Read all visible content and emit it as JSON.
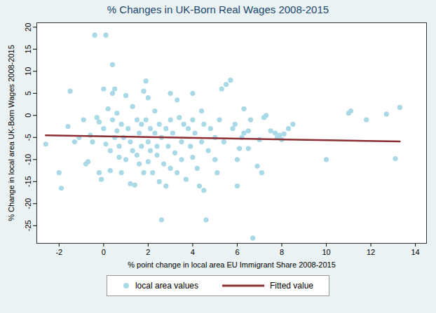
{
  "chart_data": {
    "type": "scatter",
    "title": "% Changes in UK-Born Real Wages 2008-2015",
    "x_label": "% point change in local area EU Immigrant Share 2008-2015",
    "y_label": "% Change in local area UK-Born Wages 2008-2015",
    "xlim": [
      -3,
      14.5
    ],
    "ylim": [
      -29,
      21
    ],
    "xticks": [
      -2,
      0,
      2,
      4,
      6,
      8,
      10,
      12,
      14
    ],
    "yticks": [
      -25,
      -20,
      -15,
      -10,
      -5,
      0,
      5,
      10,
      15,
      20
    ],
    "grid": false,
    "legend": "bottom",
    "series": [
      {
        "name": "local area values",
        "type": "scatter",
        "marker": "circle",
        "color": "#a9d9e6",
        "x": [
          -2.6,
          -2,
          -1.9,
          -1.6,
          -1.5,
          -1.3,
          -1.1,
          -0.9,
          -0.8,
          -0.7,
          -0.6,
          -0.5,
          -0.4,
          -0.3,
          -0.2,
          -0.2,
          -0.1,
          0,
          0,
          0.1,
          0.1,
          0.2,
          0.3,
          0.3,
          0.4,
          0.4,
          0.4,
          0.5,
          0.5,
          0.6,
          0.6,
          0.7,
          0.7,
          0.8,
          0.8,
          0.9,
          1,
          1,
          1.1,
          1.2,
          1.2,
          1.3,
          1.3,
          1.4,
          1.5,
          1.5,
          1.6,
          1.6,
          1.7,
          1.7,
          1.8,
          1.8,
          1.9,
          1.9,
          2,
          2,
          2,
          2.1,
          2.1,
          2.2,
          2.3,
          2.3,
          2.4,
          2.4,
          2.5,
          2.5,
          2.6,
          2.6,
          2.7,
          2.8,
          2.8,
          2.9,
          3,
          3,
          3,
          3.1,
          3.2,
          3.3,
          3.3,
          3.4,
          3.5,
          3.5,
          3.6,
          3.7,
          3.8,
          3.9,
          4,
          4,
          4,
          4.1,
          4.2,
          4.3,
          4.4,
          4.4,
          4.5,
          4.5,
          4.6,
          4.7,
          4.8,
          5,
          5,
          5.1,
          5.2,
          5.3,
          5.4,
          5.5,
          5.7,
          5.8,
          5.9,
          6,
          6,
          6.1,
          6.2,
          6.3,
          6.3,
          6.5,
          6.5,
          6.6,
          6.7,
          6.9,
          7,
          7.1,
          7.2,
          7.3,
          7.5,
          7.7,
          7.8,
          7.9,
          8,
          8.1,
          8.3,
          8.5,
          10,
          11,
          11.1,
          11.8,
          12.7,
          13.1,
          13.3
        ],
        "values": [
          -6.5,
          -13,
          -16.5,
          -2.5,
          5.5,
          -6,
          -5,
          -1,
          -11,
          -10.5,
          -4.5,
          -6,
          18.2,
          -0.5,
          -1.5,
          -13,
          -14.5,
          6,
          -3,
          18.2,
          -6.5,
          1.5,
          -8,
          -12.5,
          11.5,
          5,
          -1,
          6,
          -5,
          -3.5,
          0.5,
          -7,
          -9.5,
          -2,
          -13,
          -5,
          4.5,
          -10,
          -3,
          -6,
          -15.5,
          2,
          -8,
          -15.8,
          -1,
          -9,
          -4,
          -11,
          -2,
          -7,
          5.5,
          -13,
          7.8,
          -1,
          4,
          -6,
          -10.5,
          -3,
          -8,
          -13,
          -4,
          1,
          -7,
          -9,
          -2,
          -15,
          -23.7,
          -5,
          -11,
          -3,
          -16,
          -7,
          5,
          -1,
          -12,
          -4,
          -8.5,
          3.5,
          -13,
          -0.5,
          -6,
          -10,
          -2,
          -14.5,
          -3,
          -7,
          -1,
          5,
          -9.5,
          -4,
          -12,
          -16,
          -6,
          1,
          -17,
          -2,
          -23.7,
          -8,
          -3,
          -5,
          -10,
          -13,
          -1,
          6,
          -6,
          7,
          8,
          -3,
          -2,
          -16,
          -10,
          -7.5,
          -5,
          1.5,
          -4,
          -3.5,
          -7.5,
          -1,
          -27.8,
          -11.5,
          -5.5,
          -13,
          -0.5,
          0,
          -3.5,
          -4,
          -5,
          -4.5,
          -5.5,
          -4.2,
          -3,
          -2,
          -10,
          0.5,
          1,
          -1,
          0.3,
          -9.8,
          1.8
        ]
      },
      {
        "name": "Fitted value",
        "type": "line",
        "line_style": "solid",
        "color": "#8c2d32",
        "x": [
          -2.6,
          13.3
        ],
        "values": [
          -4.5,
          -5.9
        ]
      }
    ]
  }
}
